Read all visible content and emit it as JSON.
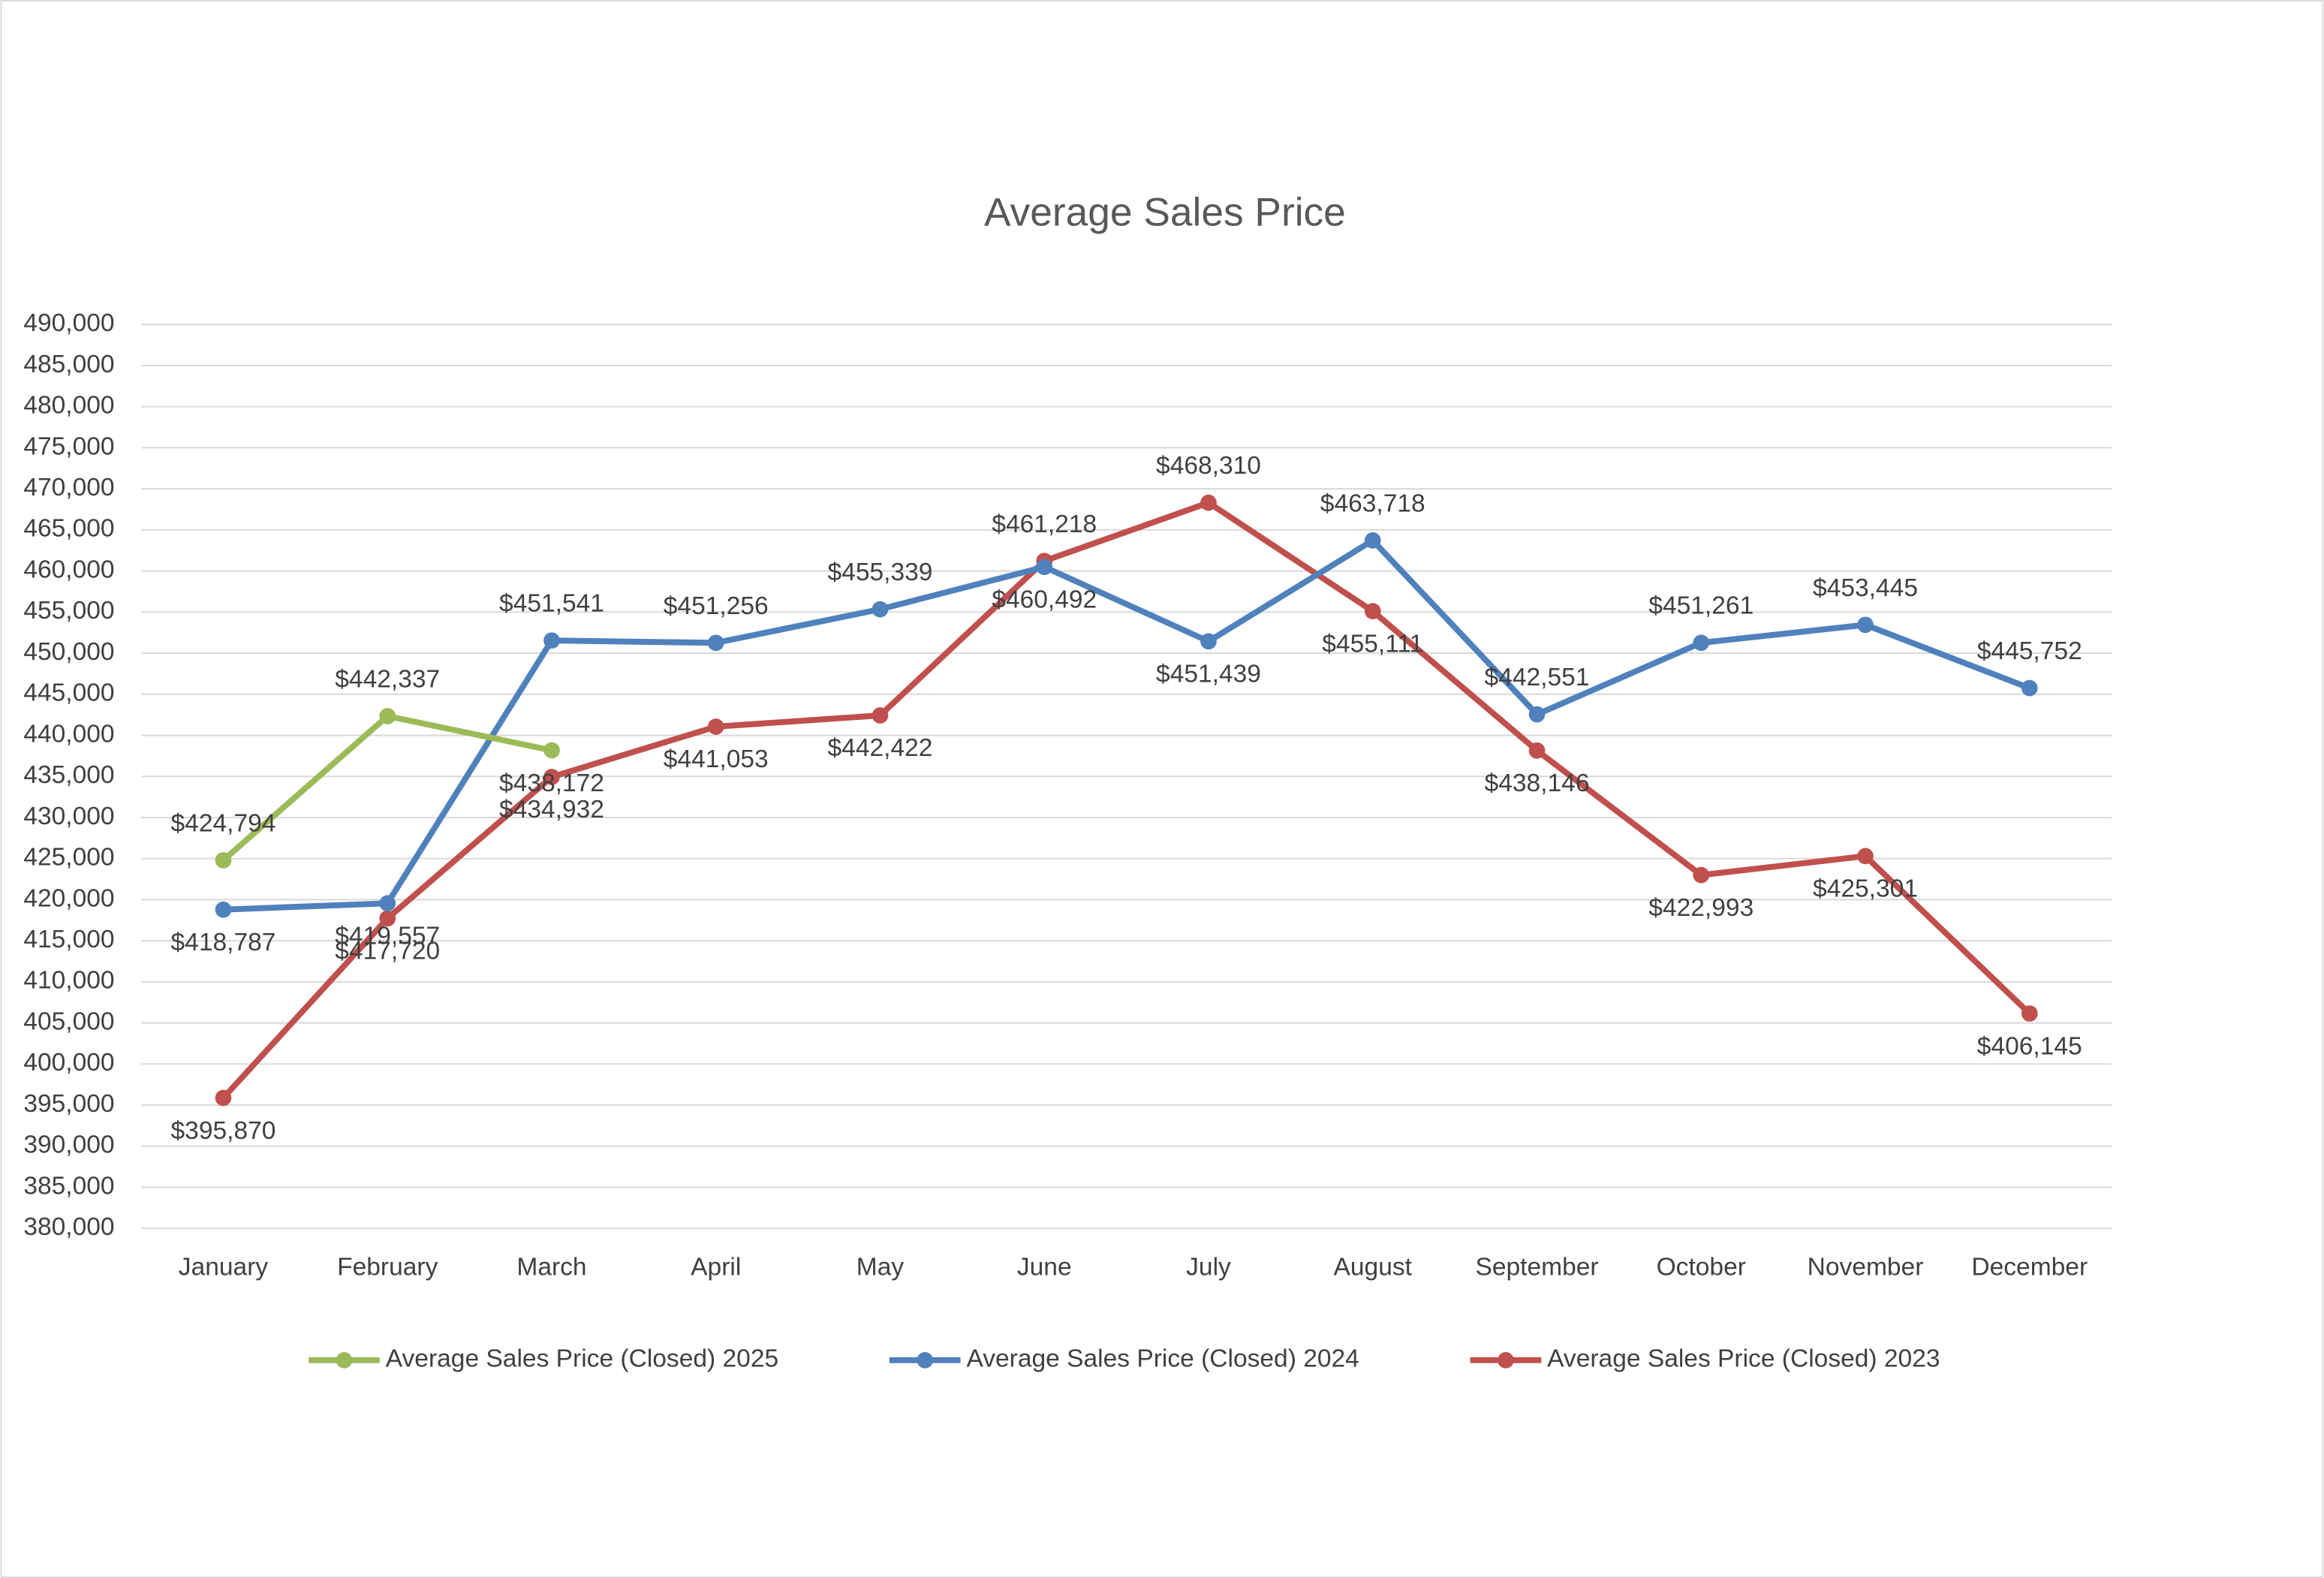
{
  "chart_data": {
    "type": "line",
    "title": "Average Sales Price",
    "categories": [
      "January",
      "February",
      "March",
      "April",
      "May",
      "June",
      "July",
      "August",
      "September",
      "October",
      "November",
      "December"
    ],
    "ylim": [
      380000,
      490000
    ],
    "yticks": [
      {
        "value": 380000,
        "label": "380,000"
      },
      {
        "value": 385000,
        "label": "385,000"
      },
      {
        "value": 390000,
        "label": "390,000"
      },
      {
        "value": 395000,
        "label": "395,000"
      },
      {
        "value": 400000,
        "label": "400,000"
      },
      {
        "value": 405000,
        "label": "405,000"
      },
      {
        "value": 410000,
        "label": "410,000"
      },
      {
        "value": 415000,
        "label": "415,000"
      },
      {
        "value": 420000,
        "label": "420,000"
      },
      {
        "value": 425000,
        "label": "425,000"
      },
      {
        "value": 430000,
        "label": "430,000"
      },
      {
        "value": 435000,
        "label": "435,000"
      },
      {
        "value": 440000,
        "label": "440,000"
      },
      {
        "value": 445000,
        "label": "445,000"
      },
      {
        "value": 450000,
        "label": "450,000"
      },
      {
        "value": 455000,
        "label": "455,000"
      },
      {
        "value": 460000,
        "label": "460,000"
      },
      {
        "value": 465000,
        "label": "465,000"
      },
      {
        "value": 470000,
        "label": "470,000"
      },
      {
        "value": 475000,
        "label": "475,000"
      },
      {
        "value": 480000,
        "label": "480,000"
      },
      {
        "value": 485000,
        "label": "485,000"
      },
      {
        "value": 490000,
        "label": "490,000"
      }
    ],
    "grid": true,
    "legend": "bottom",
    "series": [
      {
        "name": "Average Sales Price (Closed) 2025",
        "color": "#9bbb59",
        "values": [
          424794,
          442337,
          438172,
          null,
          null,
          null,
          null,
          null,
          null,
          null,
          null,
          null
        ],
        "value_labels": [
          "$424,794",
          "$442,337",
          "$438,172",
          null,
          null,
          null,
          null,
          null,
          null,
          null,
          null,
          null
        ]
      },
      {
        "name": "Average Sales Price (Closed) 2024",
        "color": "#4f81bd",
        "values": [
          418787,
          419557,
          451541,
          451256,
          455339,
          460492,
          451439,
          463718,
          442551,
          451261,
          453445,
          445752
        ],
        "value_labels": [
          "$418,787",
          "$419,557",
          "$451,541",
          "$451,256",
          "$455,339",
          "$460,492",
          "$451,439",
          "$463,718",
          "$442,551",
          "$451,261",
          "$453,445",
          "$445,752"
        ]
      },
      {
        "name": "Average Sales Price (Closed) 2023",
        "color": "#c0504d",
        "values": [
          395870,
          417720,
          434932,
          441053,
          442422,
          461218,
          468310,
          455111,
          438146,
          422993,
          425301,
          406145
        ],
        "value_labels": [
          "$395,870",
          "$417,720",
          "$434,932",
          "$441,053",
          "$442,422",
          "$461,218",
          "$468,310",
          "$455,111",
          "$438,146",
          "$422,993",
          "$425,301",
          "$406,145"
        ]
      }
    ]
  }
}
